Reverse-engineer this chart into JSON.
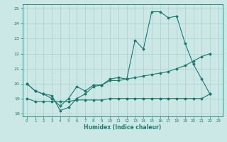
{
  "title": "",
  "xlabel": "Humidex (Indice chaleur)",
  "xlim": [
    -0.5,
    23.5
  ],
  "ylim": [
    17.8,
    25.3
  ],
  "yticks": [
    18,
    19,
    20,
    21,
    22,
    23,
    24,
    25
  ],
  "xticks": [
    0,
    1,
    2,
    3,
    4,
    5,
    6,
    7,
    8,
    9,
    10,
    11,
    12,
    13,
    14,
    15,
    16,
    17,
    18,
    19,
    20,
    21,
    22,
    23
  ],
  "bg_color": "#cce8e6",
  "grid_color": "#aacfcd",
  "line_color": "#1a7a6e",
  "lines": [
    {
      "x": [
        0,
        1,
        2,
        3,
        4,
        5,
        6,
        7,
        8,
        9,
        10,
        11,
        12,
        13,
        14,
        15,
        16,
        17,
        18,
        19,
        20,
        21,
        22
      ],
      "y": [
        19.0,
        18.8,
        18.8,
        18.8,
        18.8,
        18.8,
        18.9,
        18.9,
        18.9,
        18.9,
        19.0,
        19.0,
        19.0,
        19.0,
        19.0,
        19.0,
        19.0,
        19.0,
        19.0,
        19.0,
        19.0,
        19.0,
        19.3
      ]
    },
    {
      "x": [
        0,
        1,
        2,
        3,
        4,
        5,
        6,
        7,
        8,
        9,
        10,
        11,
        12,
        13,
        14,
        15,
        16,
        17,
        18,
        19,
        20,
        21,
        22
      ],
      "y": [
        20.0,
        19.5,
        19.3,
        19.2,
        18.2,
        18.4,
        19.0,
        19.3,
        19.8,
        19.9,
        20.2,
        20.2,
        20.3,
        20.4,
        20.5,
        20.6,
        20.7,
        20.8,
        21.0,
        21.2,
        21.5,
        21.8,
        22.0
      ]
    },
    {
      "x": [
        0,
        1,
        2,
        3,
        4,
        5,
        6,
        7,
        8,
        9,
        10,
        11,
        12,
        13,
        14,
        15,
        16,
        17,
        18,
        19,
        20,
        21,
        22
      ],
      "y": [
        20.0,
        19.5,
        19.3,
        19.0,
        18.5,
        19.0,
        19.8,
        19.5,
        19.9,
        19.9,
        20.3,
        20.4,
        20.3,
        22.9,
        22.3,
        24.8,
        24.8,
        24.4,
        24.5,
        22.7,
        21.3,
        20.3,
        19.3
      ]
    }
  ]
}
